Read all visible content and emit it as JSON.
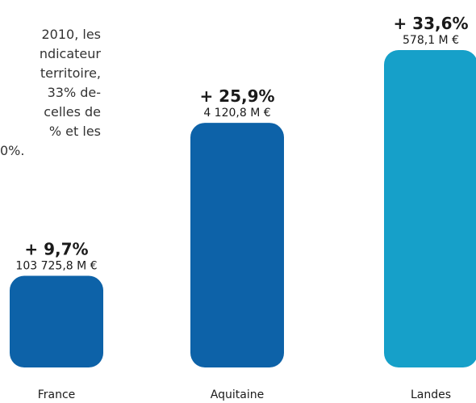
{
  "chart_data": {
    "type": "bar",
    "text_lines": [
      "2010, les",
      "ndicateur",
      "territoire,",
      "33% de-",
      "celles de",
      "% et les",
      "0%."
    ],
    "categories": [
      "France",
      "Aquitaine",
      "Landes"
    ],
    "values": [
      9.7,
      25.9,
      33.6
    ],
    "value_labels": [
      "+ 9,7%",
      "+ 25,9%",
      "+ 33,6%"
    ],
    "amounts": [
      "103 725,8 M €",
      "4 120,8 M €",
      "578,1 M €"
    ],
    "colors": [
      "#0d62a8",
      "#0d62a8",
      "#16a0c9"
    ]
  }
}
